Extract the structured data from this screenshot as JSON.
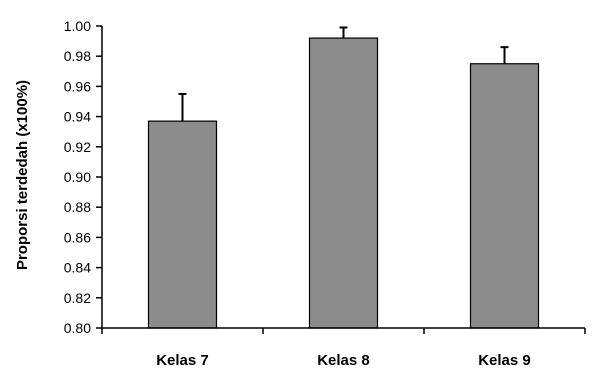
{
  "chart_data": {
    "type": "bar",
    "title": "",
    "xlabel": "",
    "ylabel": "Proporsi terdedah (x100%)",
    "categories": [
      "Kelas 7",
      "Kelas 8",
      "Kelas 9"
    ],
    "values": [
      0.937,
      0.992,
      0.975
    ],
    "error_upper": [
      0.018,
      0.007,
      0.011
    ],
    "ylim": [
      0.8,
      1.0
    ],
    "yticks": [
      "0.80",
      "0.82",
      "0.84",
      "0.86",
      "0.88",
      "0.90",
      "0.92",
      "0.94",
      "0.96",
      "0.98",
      "1.00"
    ],
    "grid": false,
    "legend": "none",
    "bar_color": "#8c8c8c",
    "bar_edge_color": "#000000"
  }
}
